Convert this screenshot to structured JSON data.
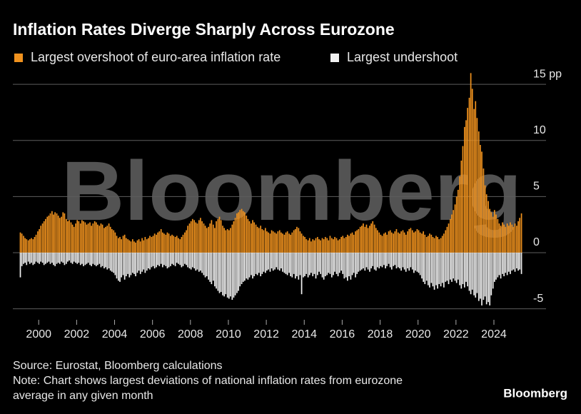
{
  "chart_data": {
    "type": "bar",
    "title": "Inflation Rates Diverge Sharply Across Eurozone",
    "watermark": "Bloomberg",
    "source": "Source: Eurostat, Bloomberg calculations",
    "note": [
      "Note: Chart shows largest deviations of national inflation rates from eurozone",
      "average in any given month"
    ],
    "logo": "Bloomberg",
    "xlim": [
      1998.9,
      2025.6
    ],
    "xticks": [
      2000,
      2002,
      2004,
      2006,
      2008,
      2010,
      2012,
      2014,
      2016,
      2018,
      2020,
      2022,
      2024
    ],
    "ylim": [
      -5.8,
      16.5
    ],
    "yticks": [
      {
        "value": 15,
        "label": "15 pp"
      },
      10,
      5,
      0,
      -5
    ],
    "grid": true,
    "x": [
      1999,
      1999.08,
      1999.17,
      1999.25,
      1999.33,
      1999.42,
      1999.5,
      1999.58,
      1999.67,
      1999.75,
      1999.83,
      1999.92,
      2000,
      2000.08,
      2000.17,
      2000.25,
      2000.33,
      2000.42,
      2000.5,
      2000.58,
      2000.67,
      2000.75,
      2000.83,
      2000.92,
      2001,
      2001.08,
      2001.17,
      2001.25,
      2001.33,
      2001.42,
      2001.5,
      2001.58,
      2001.67,
      2001.75,
      2001.83,
      2001.92,
      2002,
      2002.08,
      2002.17,
      2002.25,
      2002.33,
      2002.42,
      2002.5,
      2002.58,
      2002.67,
      2002.75,
      2002.83,
      2002.92,
      2003,
      2003.08,
      2003.17,
      2003.25,
      2003.33,
      2003.42,
      2003.5,
      2003.58,
      2003.67,
      2003.75,
      2003.83,
      2003.92,
      2004,
      2004.08,
      2004.17,
      2004.25,
      2004.33,
      2004.42,
      2004.5,
      2004.58,
      2004.67,
      2004.75,
      2004.83,
      2004.92,
      2005,
      2005.08,
      2005.17,
      2005.25,
      2005.33,
      2005.42,
      2005.5,
      2005.58,
      2005.67,
      2005.75,
      2005.83,
      2005.92,
      2006,
      2006.08,
      2006.17,
      2006.25,
      2006.33,
      2006.42,
      2006.5,
      2006.58,
      2006.67,
      2006.75,
      2006.83,
      2006.92,
      2007,
      2007.08,
      2007.17,
      2007.25,
      2007.33,
      2007.42,
      2007.5,
      2007.58,
      2007.67,
      2007.75,
      2007.83,
      2007.92,
      2008,
      2008.08,
      2008.17,
      2008.25,
      2008.33,
      2008.42,
      2008.5,
      2008.58,
      2008.67,
      2008.75,
      2008.83,
      2008.92,
      2009,
      2009.08,
      2009.17,
      2009.25,
      2009.33,
      2009.42,
      2009.5,
      2009.58,
      2009.67,
      2009.75,
      2009.83,
      2009.92,
      2010,
      2010.08,
      2010.17,
      2010.25,
      2010.33,
      2010.42,
      2010.5,
      2010.58,
      2010.67,
      2010.75,
      2010.83,
      2010.92,
      2011,
      2011.08,
      2011.17,
      2011.25,
      2011.33,
      2011.42,
      2011.5,
      2011.58,
      2011.67,
      2011.75,
      2011.83,
      2011.92,
      2012,
      2012.08,
      2012.17,
      2012.25,
      2012.33,
      2012.42,
      2012.5,
      2012.58,
      2012.67,
      2012.75,
      2012.83,
      2012.92,
      2013,
      2013.08,
      2013.17,
      2013.25,
      2013.33,
      2013.42,
      2013.5,
      2013.58,
      2013.67,
      2013.75,
      2013.83,
      2013.92,
      2014,
      2014.08,
      2014.17,
      2014.25,
      2014.33,
      2014.42,
      2014.5,
      2014.58,
      2014.67,
      2014.75,
      2014.83,
      2014.92,
      2015,
      2015.08,
      2015.17,
      2015.25,
      2015.33,
      2015.42,
      2015.5,
      2015.58,
      2015.67,
      2015.75,
      2015.83,
      2015.92,
      2016,
      2016.08,
      2016.17,
      2016.25,
      2016.33,
      2016.42,
      2016.5,
      2016.58,
      2016.67,
      2016.75,
      2016.83,
      2016.92,
      2017,
      2017.08,
      2017.17,
      2017.25,
      2017.33,
      2017.42,
      2017.5,
      2017.58,
      2017.67,
      2017.75,
      2017.83,
      2017.92,
      2018,
      2018.08,
      2018.17,
      2018.25,
      2018.33,
      2018.42,
      2018.5,
      2018.58,
      2018.67,
      2018.75,
      2018.83,
      2018.92,
      2019,
      2019.08,
      2019.17,
      2019.25,
      2019.33,
      2019.42,
      2019.5,
      2019.58,
      2019.67,
      2019.75,
      2019.83,
      2019.92,
      2020,
      2020.08,
      2020.17,
      2020.25,
      2020.33,
      2020.42,
      2020.5,
      2020.58,
      2020.67,
      2020.75,
      2020.83,
      2020.92,
      2021,
      2021.08,
      2021.17,
      2021.25,
      2021.33,
      2021.42,
      2021.5,
      2021.58,
      2021.67,
      2021.75,
      2021.83,
      2021.92,
      2022,
      2022.08,
      2022.17,
      2022.25,
      2022.33,
      2022.42,
      2022.5,
      2022.58,
      2022.67,
      2022.75,
      2022.83,
      2022.92,
      2023,
      2023.08,
      2023.17,
      2023.25,
      2023.33,
      2023.42,
      2023.5,
      2023.58,
      2023.67,
      2023.75,
      2023.83,
      2023.92,
      2024,
      2024.08,
      2024.17,
      2024.25,
      2024.33,
      2024.42,
      2024.5,
      2024.58,
      2024.67,
      2024.75,
      2024.83,
      2024.92,
      2025,
      2025.08,
      2025.17,
      2025.25,
      2025.33,
      2025.42
    ],
    "series": [
      {
        "name": "Largest overshoot of euro-area inflation rate",
        "color": "#f0921e",
        "values": [
          1.8,
          1.7,
          1.5,
          1.3,
          1.2,
          1.1,
          1.2,
          1.3,
          1.2,
          1.4,
          1.6,
          1.9,
          2.1,
          2.4,
          2.6,
          2.8,
          3.0,
          3.2,
          3.3,
          3.5,
          3.7,
          3.4,
          3.6,
          3.5,
          3.3,
          3.1,
          3.2,
          3.6,
          3.5,
          3.0,
          2.8,
          2.9,
          2.7,
          2.5,
          2.3,
          2.6,
          2.9,
          2.8,
          2.6,
          2.9,
          2.8,
          2.7,
          2.5,
          2.6,
          2.7,
          2.4,
          2.6,
          2.8,
          2.7,
          2.5,
          2.4,
          2.6,
          2.5,
          2.2,
          2.3,
          2.4,
          2.6,
          2.3,
          2.1,
          2.0,
          1.8,
          1.5,
          1.3,
          1.4,
          1.2,
          1.5,
          1.6,
          1.3,
          1.2,
          1.1,
          1.0,
          1.2,
          1.0,
          0.9,
          1.1,
          1.2,
          1.0,
          1.3,
          1.1,
          1.4,
          1.2,
          1.3,
          1.5,
          1.4,
          1.5,
          1.7,
          1.6,
          1.8,
          1.9,
          2.1,
          1.8,
          1.7,
          1.6,
          1.8,
          1.7,
          1.5,
          1.6,
          1.5,
          1.4,
          1.5,
          1.3,
          1.2,
          1.4,
          1.6,
          1.8,
          2.0,
          2.4,
          2.6,
          2.8,
          3.0,
          2.9,
          2.7,
          2.6,
          2.9,
          3.1,
          2.8,
          2.6,
          2.4,
          2.2,
          2.3,
          2.6,
          2.9,
          2.5,
          2.2,
          2.8,
          3.0,
          3.2,
          2.9,
          2.4,
          2.2,
          2.0,
          2.1,
          2.0,
          2.2,
          2.5,
          2.8,
          3.1,
          3.5,
          3.6,
          3.8,
          3.9,
          3.7,
          3.6,
          3.3,
          3.0,
          2.8,
          2.6,
          2.9,
          2.7,
          2.5,
          2.3,
          2.2,
          2.4,
          2.1,
          2.0,
          2.2,
          1.9,
          1.8,
          1.7,
          2.0,
          1.9,
          1.8,
          1.7,
          1.9,
          2.0,
          1.8,
          1.7,
          1.6,
          1.8,
          1.9,
          1.7,
          1.6,
          1.8,
          2.0,
          2.1,
          2.3,
          2.2,
          1.9,
          1.7,
          1.5,
          1.4,
          1.2,
          1.1,
          1.3,
          1.0,
          1.2,
          1.1,
          1.3,
          1.4,
          1.2,
          1.1,
          1.3,
          1.2,
          1.4,
          1.3,
          1.1,
          1.5,
          1.3,
          1.2,
          1.4,
          1.3,
          1.1,
          1.2,
          1.4,
          1.5,
          1.3,
          1.4,
          1.6,
          1.5,
          1.7,
          1.8,
          1.6,
          1.9,
          2.0,
          2.1,
          2.3,
          2.4,
          2.6,
          2.3,
          2.5,
          2.2,
          2.4,
          2.6,
          2.8,
          2.5,
          2.2,
          2.0,
          1.8,
          1.6,
          1.5,
          1.7,
          1.8,
          1.6,
          1.9,
          2.0,
          1.8,
          1.7,
          1.9,
          2.1,
          1.8,
          1.7,
          1.9,
          2.0,
          1.8,
          1.6,
          1.9,
          2.1,
          2.2,
          2.0,
          1.8,
          1.9,
          2.1,
          2.0,
          1.8,
          1.7,
          1.9,
          1.6,
          1.4,
          1.5,
          1.7,
          1.6,
          1.4,
          1.3,
          1.5,
          1.4,
          1.2,
          1.3,
          1.5,
          1.7,
          2.0,
          2.3,
          2.6,
          3.0,
          3.4,
          3.8,
          4.3,
          5.0,
          5.6,
          6.8,
          8.2,
          9.5,
          11.2,
          11.8,
          12.9,
          13.8,
          16.0,
          14.6,
          12.8,
          13.5,
          12.0,
          10.8,
          9.6,
          9.0,
          7.5,
          6.0,
          5.2,
          4.6,
          3.9,
          3.6,
          3.2,
          3.8,
          3.4,
          3.0,
          2.6,
          2.4,
          2.7,
          2.5,
          2.3,
          2.6,
          2.4,
          2.7,
          2.5,
          2.3,
          2.6,
          2.4,
          2.8,
          3.1,
          3.5
        ]
      },
      {
        "name": "Largest undershoot",
        "color": "#f2f2f2",
        "values": [
          -2.2,
          -1.2,
          -1.0,
          -0.9,
          -1.1,
          -0.8,
          -1.0,
          -0.9,
          -1.1,
          -1.0,
          -0.8,
          -0.9,
          -1.0,
          -0.8,
          -0.9,
          -1.1,
          -1.0,
          -0.9,
          -0.8,
          -1.0,
          -0.9,
          -1.1,
          -1.2,
          -1.0,
          -0.9,
          -1.0,
          -0.8,
          -0.9,
          -1.1,
          -1.0,
          -0.8,
          -0.7,
          -0.9,
          -1.0,
          -0.8,
          -0.9,
          -1.0,
          -0.9,
          -1.1,
          -1.0,
          -1.2,
          -1.1,
          -1.0,
          -0.9,
          -1.1,
          -1.2,
          -1.0,
          -1.1,
          -1.2,
          -1.1,
          -1.0,
          -1.3,
          -1.2,
          -1.4,
          -1.3,
          -1.5,
          -1.4,
          -1.6,
          -1.7,
          -1.8,
          -2.0,
          -2.3,
          -2.5,
          -2.6,
          -2.2,
          -2.0,
          -2.4,
          -2.1,
          -1.9,
          -2.2,
          -2.0,
          -1.8,
          -1.9,
          -2.1,
          -1.8,
          -1.6,
          -1.9,
          -1.7,
          -1.5,
          -1.8,
          -1.6,
          -1.4,
          -1.5,
          -1.3,
          -1.2,
          -1.4,
          -1.3,
          -1.1,
          -1.2,
          -1.0,
          -1.3,
          -1.1,
          -1.2,
          -1.4,
          -1.3,
          -1.2,
          -1.0,
          -1.1,
          -1.2,
          -0.9,
          -1.0,
          -1.1,
          -1.3,
          -1.2,
          -1.0,
          -1.1,
          -1.3,
          -1.4,
          -1.5,
          -1.3,
          -1.4,
          -1.6,
          -1.5,
          -1.7,
          -1.6,
          -1.8,
          -2.0,
          -2.2,
          -2.1,
          -2.4,
          -2.6,
          -2.8,
          -2.5,
          -3.0,
          -3.2,
          -3.4,
          -3.6,
          -3.5,
          -3.8,
          -3.9,
          -3.7,
          -4.0,
          -4.1,
          -3.9,
          -4.2,
          -4.0,
          -3.8,
          -3.6,
          -3.4,
          -3.0,
          -2.8,
          -2.6,
          -2.5,
          -2.3,
          -2.4,
          -2.2,
          -2.0,
          -2.3,
          -2.1,
          -1.9,
          -2.0,
          -1.8,
          -2.1,
          -1.9,
          -1.7,
          -1.8,
          -1.6,
          -1.5,
          -1.7,
          -1.4,
          -1.6,
          -1.5,
          -1.3,
          -1.5,
          -1.6,
          -1.4,
          -1.7,
          -1.8,
          -1.9,
          -2.0,
          -1.8,
          -2.1,
          -2.2,
          -1.9,
          -2.3,
          -2.1,
          -2.4,
          -2.0,
          -3.7,
          -2.2,
          -2.1,
          -1.9,
          -2.2,
          -2.0,
          -1.8,
          -2.1,
          -1.9,
          -2.3,
          -2.0,
          -1.7,
          -1.9,
          -2.2,
          -2.4,
          -2.1,
          -2.0,
          -1.8,
          -1.9,
          -2.2,
          -2.0,
          -1.7,
          -1.9,
          -2.1,
          -1.8,
          -1.6,
          -1.9,
          -2.3,
          -2.2,
          -2.5,
          -2.1,
          -2.4,
          -2.0,
          -1.8,
          -2.2,
          -1.9,
          -1.7,
          -1.6,
          -1.5,
          -1.4,
          -1.6,
          -1.3,
          -1.5,
          -1.7,
          -1.4,
          -1.2,
          -1.5,
          -1.6,
          -1.3,
          -1.4,
          -1.2,
          -1.3,
          -1.1,
          -1.4,
          -1.2,
          -1.0,
          -1.3,
          -1.5,
          -1.2,
          -1.1,
          -1.4,
          -1.3,
          -1.4,
          -1.6,
          -1.3,
          -1.5,
          -1.7,
          -1.4,
          -1.6,
          -1.3,
          -1.5,
          -1.8,
          -1.6,
          -1.7,
          -1.8,
          -2.0,
          -2.3,
          -2.6,
          -2.8,
          -2.5,
          -2.9,
          -3.1,
          -2.7,
          -3.0,
          -3.3,
          -2.9,
          -3.2,
          -2.8,
          -3.0,
          -2.7,
          -3.1,
          -2.6,
          -2.5,
          -2.8,
          -2.4,
          -2.6,
          -2.3,
          -2.5,
          -2.7,
          -2.4,
          -2.9,
          -3.2,
          -2.8,
          -3.1,
          -2.6,
          -3.0,
          -3.4,
          -3.7,
          -3.3,
          -3.8,
          -4.0,
          -3.6,
          -4.3,
          -4.1,
          -4.7,
          -4.2,
          -3.9,
          -4.6,
          -4.4,
          -4.7,
          -3.8,
          -3.2,
          -2.6,
          -2.4,
          -2.2,
          -2.0,
          -2.3,
          -1.9,
          -2.1,
          -1.8,
          -2.0,
          -1.7,
          -1.9,
          -1.6,
          -1.5,
          -1.7,
          -1.4,
          -1.6,
          -1.5,
          -1.9
        ]
      }
    ]
  }
}
